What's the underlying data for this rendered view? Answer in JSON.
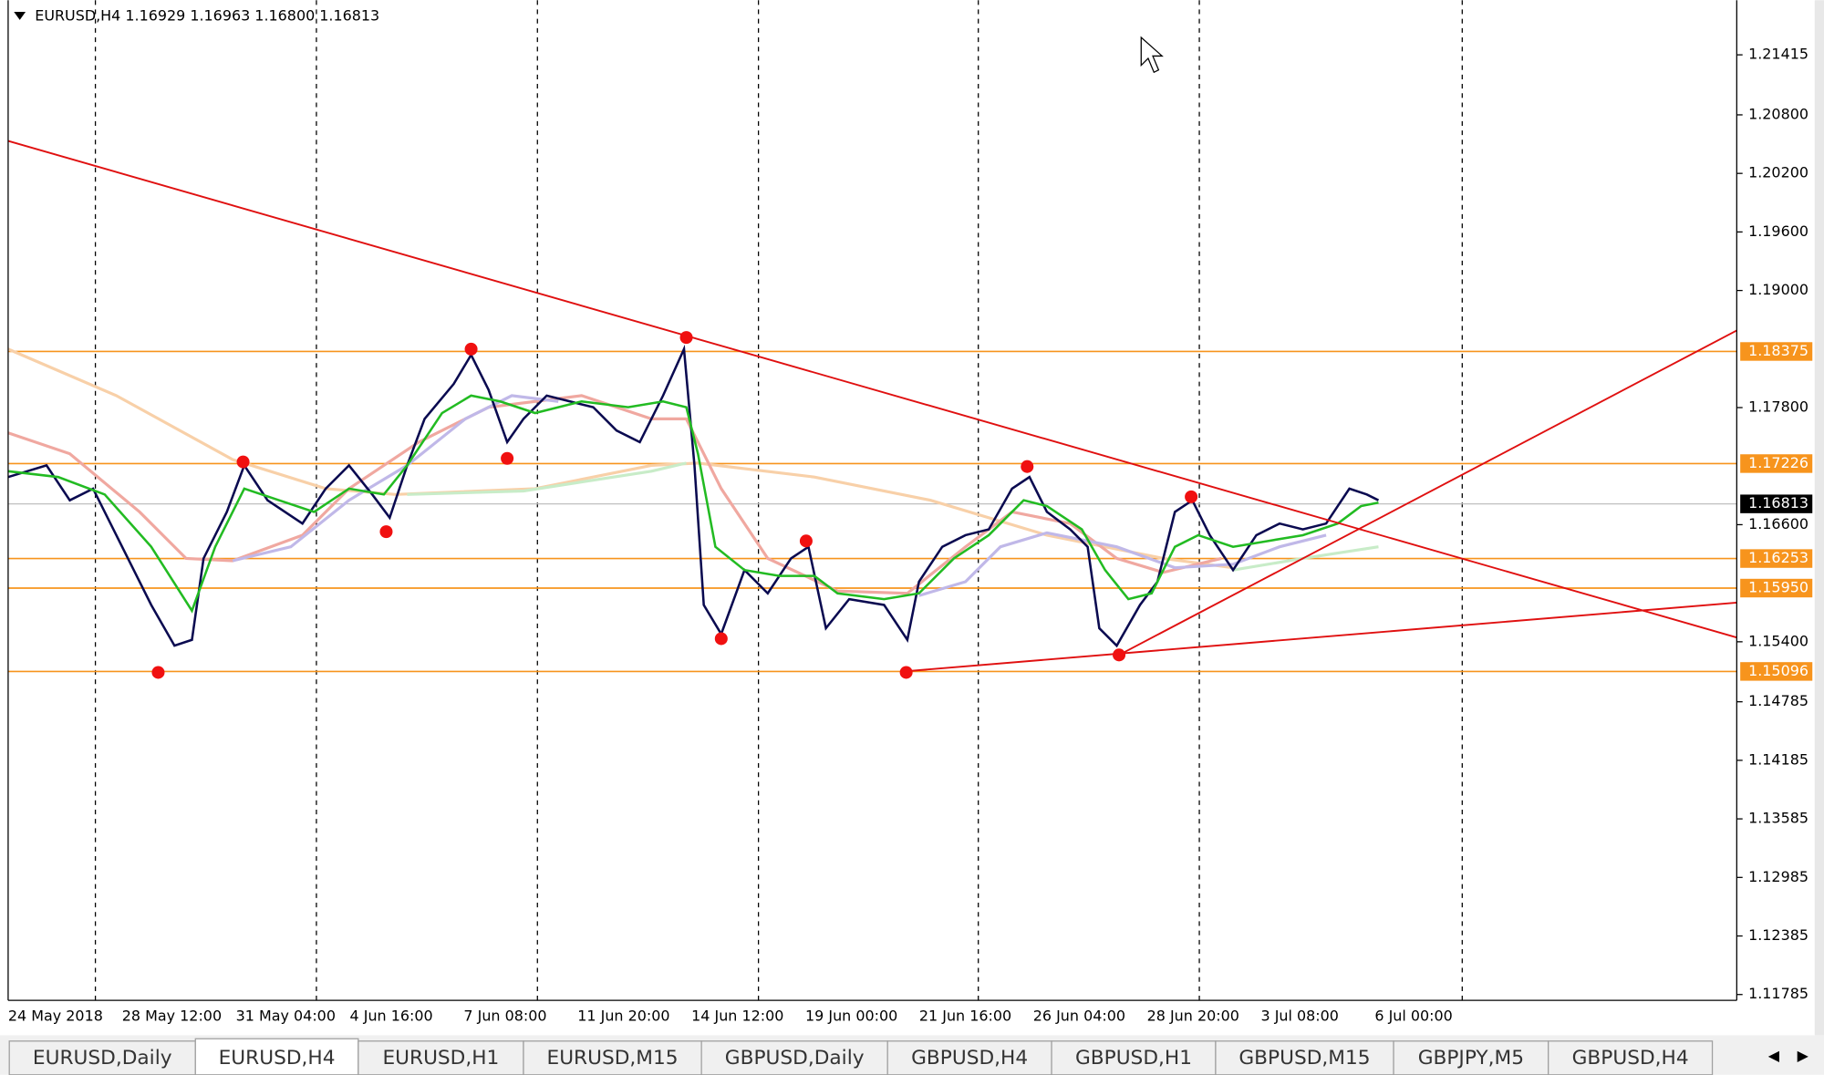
{
  "header": {
    "title": "EURUSD,H4  1.16929 1.16963 1.16800 1.16813"
  },
  "price_axis": {
    "ylim": [
      1.11725,
      1.21975
    ],
    "ticks": [
      {
        "value": 1.21415,
        "label": "1.21415"
      },
      {
        "value": 1.208,
        "label": "1.20800"
      },
      {
        "value": 1.202,
        "label": "1.20200"
      },
      {
        "value": 1.196,
        "label": "1.19600"
      },
      {
        "value": 1.19,
        "label": "1.19000"
      },
      {
        "value": 1.178,
        "label": "1.17800"
      },
      {
        "value": 1.166,
        "label": "1.16600"
      },
      {
        "value": 1.154,
        "label": "1.15400"
      },
      {
        "value": 1.14785,
        "label": "1.14785"
      },
      {
        "value": 1.14185,
        "label": "1.14185"
      },
      {
        "value": 1.13585,
        "label": "1.13585"
      },
      {
        "value": 1.12985,
        "label": "1.12985"
      },
      {
        "value": 1.12385,
        "label": "1.12385"
      },
      {
        "value": 1.11785,
        "label": "1.11785"
      }
    ]
  },
  "levels": [
    {
      "value": 1.18375,
      "label": "1.18375"
    },
    {
      "value": 1.17226,
      "label": "1.17226"
    },
    {
      "value": 1.16253,
      "label": "1.16253"
    },
    {
      "value": 1.1595,
      "label": "1.15950"
    },
    {
      "value": 1.15096,
      "label": "1.15096"
    }
  ],
  "current_price": {
    "value": 1.16813,
    "label": "1.16813"
  },
  "time_axis": {
    "labels": [
      "24 May 2018",
      "28 May 12:00",
      "31 May 04:00",
      "4 Jun 16:00",
      "7 Jun 08:00",
      "11 Jun 20:00",
      "14 Jun 12:00",
      "19 Jun 00:00",
      "21 Jun 16:00",
      "26 Jun 04:00",
      "28 Jun 20:00",
      "3 Jul 08:00",
      "6 Jul 00:00"
    ]
  },
  "tabs": [
    "EURUSD,Daily",
    "EURUSD,H4",
    "EURUSD,H1",
    "EURUSD,M15",
    "GBPUSD,Daily",
    "GBPUSD,H4",
    "GBPUSD,H1",
    "GBPUSD,M15",
    "GBPJPY,M5",
    "GBPUSD,H4"
  ],
  "active_tab": 1
}
